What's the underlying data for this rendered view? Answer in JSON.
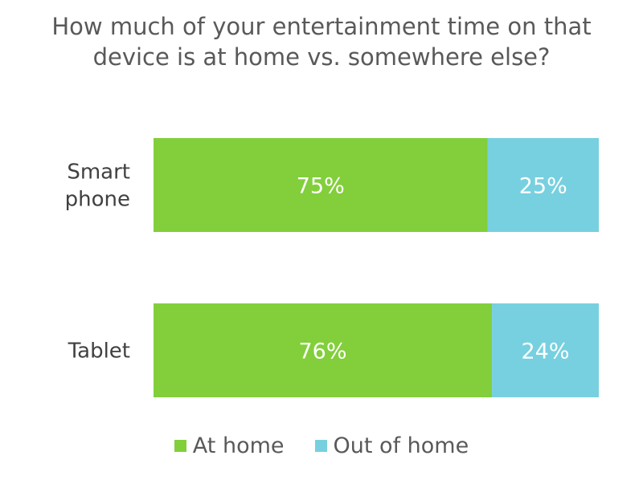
{
  "chart_data": {
    "type": "bar",
    "orientation": "horizontal",
    "stacked": true,
    "title_lines": [
      "How much of your entertainment time on that",
      "device is at home vs. somewhere else?"
    ],
    "categories": [
      {
        "lines": [
          "Smart",
          "phone"
        ]
      },
      {
        "lines": [
          "Tablet"
        ]
      }
    ],
    "series": [
      {
        "name": "At home",
        "values": [
          75,
          76
        ],
        "labels": [
          "75%",
          "76%"
        ],
        "color": "#82cf3b"
      },
      {
        "name": "Out of home",
        "values": [
          25,
          24
        ],
        "labels": [
          "25%",
          "24%"
        ],
        "color": "#77d0df"
      }
    ],
    "xlim": [
      0,
      100
    ],
    "grid": false,
    "legend_position": "bottom"
  }
}
